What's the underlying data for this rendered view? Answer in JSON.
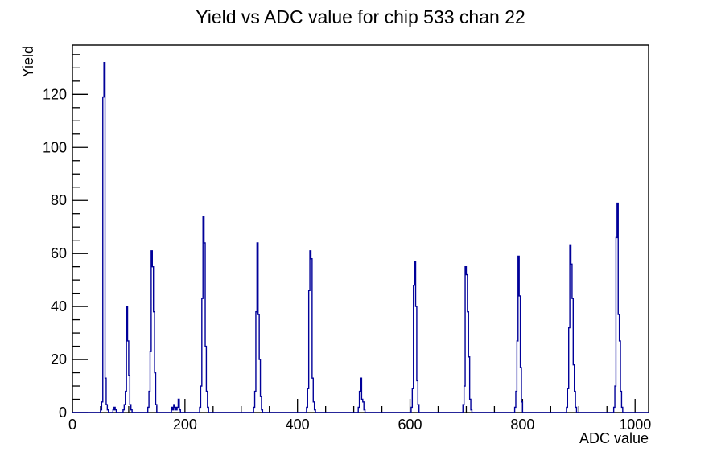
{
  "page": {
    "background": "#ffffff"
  },
  "chart_data": {
    "type": "bar",
    "subtype": "step-histogram",
    "title": "Yield vs ADC value for chip 533 chan 22",
    "xlabel": "ADC value",
    "ylabel": "Yield",
    "xlim": [
      0,
      1024
    ],
    "ylim": [
      0,
      138.6
    ],
    "grid": false,
    "legend": "none",
    "line_color": "#000099",
    "axis_color": "#000000",
    "x_major_ticks": [
      0,
      200,
      400,
      600,
      800,
      1000
    ],
    "x_minor_step": 50,
    "y_major_ticks": [
      0,
      20,
      40,
      60,
      80,
      100,
      120
    ],
    "y_minor_step": 5,
    "bin_width": 2,
    "bins": [
      [
        50,
        1
      ],
      [
        52,
        4
      ],
      [
        54,
        119
      ],
      [
        56,
        132
      ],
      [
        58,
        13
      ],
      [
        60,
        3
      ],
      [
        62,
        1
      ],
      [
        72,
        1
      ],
      [
        74,
        2
      ],
      [
        76,
        1
      ],
      [
        90,
        1
      ],
      [
        92,
        3
      ],
      [
        94,
        8
      ],
      [
        96,
        40
      ],
      [
        98,
        27
      ],
      [
        100,
        14
      ],
      [
        102,
        3
      ],
      [
        104,
        1
      ],
      [
        134,
        2
      ],
      [
        136,
        8
      ],
      [
        138,
        23
      ],
      [
        140,
        61
      ],
      [
        142,
        55
      ],
      [
        144,
        38
      ],
      [
        146,
        15
      ],
      [
        148,
        3
      ],
      [
        176,
        2
      ],
      [
        178,
        1
      ],
      [
        180,
        3
      ],
      [
        182,
        2
      ],
      [
        184,
        1
      ],
      [
        186,
        2
      ],
      [
        188,
        5
      ],
      [
        190,
        1
      ],
      [
        226,
        2
      ],
      [
        228,
        10
      ],
      [
        230,
        43
      ],
      [
        232,
        74
      ],
      [
        234,
        64
      ],
      [
        236,
        25
      ],
      [
        238,
        8
      ],
      [
        240,
        2
      ],
      [
        322,
        2
      ],
      [
        324,
        8
      ],
      [
        326,
        38
      ],
      [
        328,
        64
      ],
      [
        330,
        37
      ],
      [
        332,
        20
      ],
      [
        334,
        6
      ],
      [
        336,
        1
      ],
      [
        416,
        2
      ],
      [
        418,
        9
      ],
      [
        420,
        46
      ],
      [
        422,
        61
      ],
      [
        424,
        58
      ],
      [
        426,
        13
      ],
      [
        428,
        4
      ],
      [
        430,
        1
      ],
      [
        508,
        2
      ],
      [
        510,
        8
      ],
      [
        512,
        13
      ],
      [
        514,
        5
      ],
      [
        516,
        4
      ],
      [
        518,
        1
      ],
      [
        602,
        2
      ],
      [
        604,
        9
      ],
      [
        606,
        48
      ],
      [
        608,
        57
      ],
      [
        610,
        40
      ],
      [
        612,
        12
      ],
      [
        614,
        3
      ],
      [
        694,
        3
      ],
      [
        696,
        10
      ],
      [
        698,
        55
      ],
      [
        700,
        52
      ],
      [
        702,
        38
      ],
      [
        704,
        21
      ],
      [
        706,
        5
      ],
      [
        708,
        1
      ],
      [
        786,
        2
      ],
      [
        788,
        8
      ],
      [
        790,
        27
      ],
      [
        792,
        59
      ],
      [
        794,
        44
      ],
      [
        796,
        17
      ],
      [
        798,
        4
      ],
      [
        878,
        2
      ],
      [
        880,
        9
      ],
      [
        882,
        32
      ],
      [
        884,
        63
      ],
      [
        886,
        56
      ],
      [
        888,
        43
      ],
      [
        890,
        18
      ],
      [
        892,
        8
      ],
      [
        894,
        2
      ],
      [
        962,
        2
      ],
      [
        964,
        10
      ],
      [
        966,
        66
      ],
      [
        968,
        79
      ],
      [
        970,
        37
      ],
      [
        972,
        27
      ],
      [
        974,
        8
      ],
      [
        976,
        2
      ]
    ],
    "peaks_summary": [
      {
        "adc": 57,
        "yield": 132
      },
      {
        "adc": 75,
        "yield": 2
      },
      {
        "adc": 97,
        "yield": 40
      },
      {
        "adc": 141,
        "yield": 61
      },
      {
        "adc": 189,
        "yield": 5
      },
      {
        "adc": 233,
        "yield": 74
      },
      {
        "adc": 329,
        "yield": 64
      },
      {
        "adc": 423,
        "yield": 61
      },
      {
        "adc": 513,
        "yield": 13
      },
      {
        "adc": 609,
        "yield": 57
      },
      {
        "adc": 699,
        "yield": 55
      },
      {
        "adc": 793,
        "yield": 59
      },
      {
        "adc": 885,
        "yield": 63
      },
      {
        "adc": 969,
        "yield": 79
      }
    ]
  }
}
